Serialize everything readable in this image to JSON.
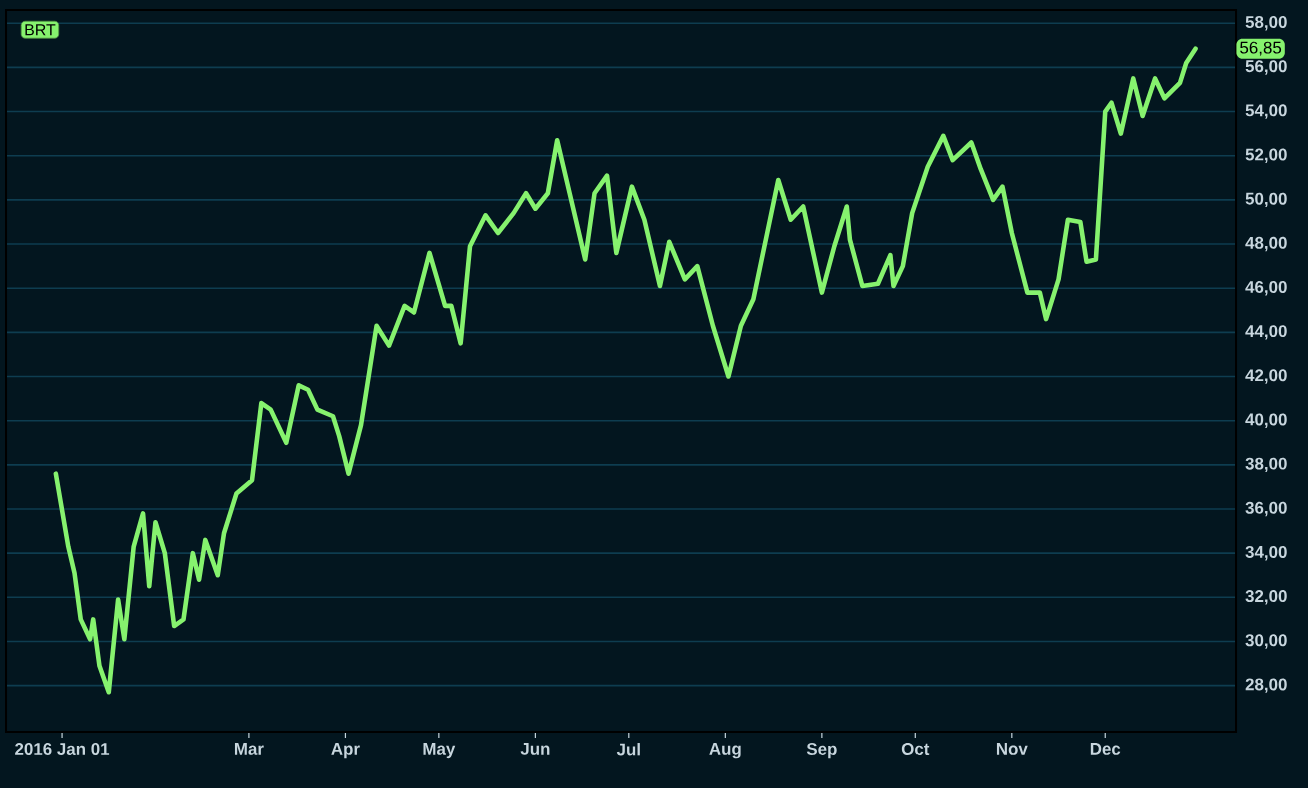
{
  "chart_data": {
    "type": "line",
    "title": "BRT",
    "color": "#86f26e",
    "grid": "y",
    "xlim": [
      "2015-12-14",
      "2017-01-12"
    ],
    "ylim": [
      25.9,
      58.6
    ],
    "xticks": [
      {
        "value": "2016-01-01",
        "label": "2016 Jan 01"
      },
      {
        "value": "2016-03-01",
        "label": "Mar"
      },
      {
        "value": "2016-04-01",
        "label": "Apr"
      },
      {
        "value": "2016-05-01",
        "label": "May"
      },
      {
        "value": "2016-06-01",
        "label": "Jun"
      },
      {
        "value": "2016-07-01",
        "label": "Jul"
      },
      {
        "value": "2016-08-01",
        "label": "Aug"
      },
      {
        "value": "2016-09-01",
        "label": "Sep"
      },
      {
        "value": "2016-10-01",
        "label": "Oct"
      },
      {
        "value": "2016-11-01",
        "label": "Nov"
      },
      {
        "value": "2016-12-01",
        "label": "Dec"
      }
    ],
    "yticks": [
      {
        "value": 28,
        "label": "28,00"
      },
      {
        "value": 30,
        "label": "30,00"
      },
      {
        "value": 32,
        "label": "32,00"
      },
      {
        "value": 34,
        "label": "34,00"
      },
      {
        "value": 36,
        "label": "36,00"
      },
      {
        "value": 38,
        "label": "38,00"
      },
      {
        "value": 40,
        "label": "40,00"
      },
      {
        "value": 42,
        "label": "42,00"
      },
      {
        "value": 44,
        "label": "44,00"
      },
      {
        "value": 46,
        "label": "46,00"
      },
      {
        "value": 48,
        "label": "48,00"
      },
      {
        "value": 50,
        "label": "50,00"
      },
      {
        "value": 52,
        "label": "52,00"
      },
      {
        "value": 54,
        "label": "54,00"
      },
      {
        "value": 56,
        "label": "56,00"
      },
      {
        "value": 58,
        "label": "58,00"
      }
    ],
    "x": [
      "2015-12-30",
      "2016-01-03",
      "2016-01-05",
      "2016-01-07",
      "2016-01-10",
      "2016-01-11",
      "2016-01-13",
      "2016-01-16",
      "2016-01-19",
      "2016-01-21",
      "2016-01-24",
      "2016-01-27",
      "2016-01-29",
      "2016-01-31",
      "2016-02-03",
      "2016-02-06",
      "2016-02-09",
      "2016-02-12",
      "2016-02-14",
      "2016-02-16",
      "2016-02-20",
      "2016-02-22",
      "2016-02-26",
      "2016-03-02",
      "2016-03-05",
      "2016-03-08",
      "2016-03-13",
      "2016-03-17",
      "2016-03-20",
      "2016-03-23",
      "2016-03-28",
      "2016-03-30",
      "2016-04-02",
      "2016-04-06",
      "2016-04-08",
      "2016-04-11",
      "2016-04-15",
      "2016-04-20",
      "2016-04-23",
      "2016-04-28",
      "2016-05-03",
      "2016-05-05",
      "2016-05-08",
      "2016-05-11",
      "2016-05-16",
      "2016-05-20",
      "2016-05-25",
      "2016-05-29",
      "2016-06-01",
      "2016-06-05",
      "2016-06-08",
      "2016-06-12",
      "2016-06-17",
      "2016-06-20",
      "2016-06-24",
      "2016-06-27",
      "2016-07-02",
      "2016-07-06",
      "2016-07-11",
      "2016-07-14",
      "2016-07-19",
      "2016-07-23",
      "2016-07-28",
      "2016-08-02",
      "2016-08-06",
      "2016-08-10",
      "2016-08-14",
      "2016-08-18",
      "2016-08-22",
      "2016-08-26",
      "2016-09-01",
      "2016-09-05",
      "2016-09-09",
      "2016-09-10",
      "2016-09-14",
      "2016-09-19",
      "2016-09-23",
      "2016-09-24",
      "2016-09-27",
      "2016-09-30",
      "2016-10-05",
      "2016-10-10",
      "2016-10-13",
      "2016-10-19",
      "2016-10-22",
      "2016-10-26",
      "2016-10-29",
      "2016-11-01",
      "2016-11-06",
      "2016-11-10",
      "2016-11-12",
      "2016-11-16",
      "2016-11-19",
      "2016-11-23",
      "2016-11-25",
      "2016-11-28",
      "2016-12-01",
      "2016-12-03",
      "2016-12-06",
      "2016-12-10",
      "2016-12-13",
      "2016-12-17",
      "2016-12-20",
      "2016-12-25",
      "2016-12-27",
      "2016-12-30"
    ],
    "values": [
      37.6,
      34.3,
      33.1,
      31.0,
      30.1,
      31.0,
      28.9,
      27.7,
      31.9,
      30.1,
      34.3,
      35.8,
      32.5,
      35.4,
      34.0,
      30.7,
      31.0,
      34.0,
      32.8,
      34.6,
      33.0,
      34.9,
      36.7,
      37.3,
      40.8,
      40.5,
      39.0,
      41.6,
      41.4,
      40.5,
      40.2,
      39.3,
      37.6,
      39.8,
      41.6,
      44.3,
      43.4,
      45.2,
      44.9,
      47.6,
      45.2,
      45.2,
      43.5,
      47.9,
      49.3,
      48.5,
      49.4,
      50.3,
      49.6,
      50.3,
      52.7,
      50.3,
      47.3,
      50.3,
      51.1,
      47.6,
      50.6,
      49.1,
      46.1,
      48.1,
      46.4,
      47.0,
      44.3,
      42.0,
      44.3,
      45.5,
      48.2,
      50.9,
      49.1,
      49.7,
      45.8,
      47.9,
      49.7,
      48.2,
      46.1,
      46.2,
      47.5,
      46.1,
      47.0,
      49.4,
      51.5,
      52.9,
      51.8,
      52.6,
      51.4,
      50.0,
      50.6,
      48.5,
      45.8,
      45.8,
      44.6,
      46.4,
      49.1,
      49.0,
      47.2,
      47.3,
      54.0,
      54.4,
      53.0,
      55.5,
      53.8,
      55.5,
      54.6,
      55.3,
      56.2,
      56.85
    ],
    "annotations": [
      {
        "text": "56,85",
        "x": "2016-12-30",
        "y": 56.85
      }
    ]
  }
}
